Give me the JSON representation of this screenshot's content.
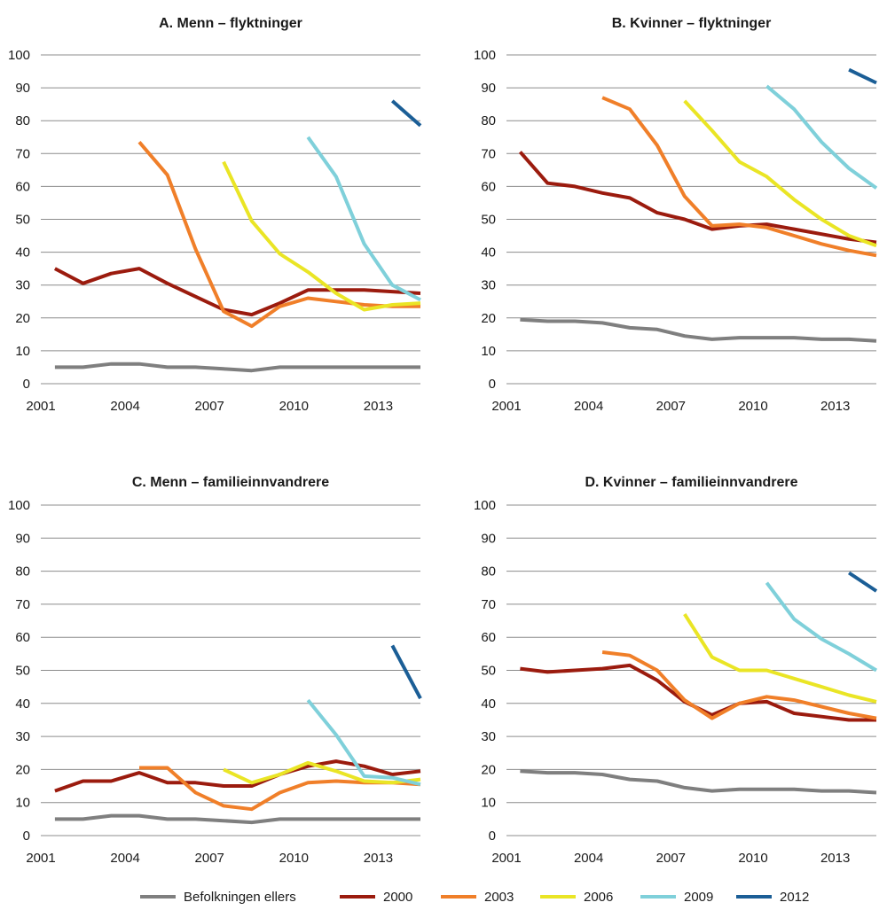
{
  "chart_data": [
    {
      "type": "line",
      "title": "A. Menn – flyktninger",
      "xlim": [
        2001,
        2014.5
      ],
      "ylim": [
        0,
        100
      ],
      "x_ticks": [
        "2001",
        "2004",
        "2007",
        "2010",
        "2013"
      ],
      "y_ticks": [
        "0",
        "10",
        "20",
        "30",
        "40",
        "50",
        "60",
        "70",
        "80",
        "90",
        "100"
      ],
      "grid": true,
      "series": [
        {
          "name": "Befolkningen ellers",
          "x": [
            2001.5,
            2002.5,
            2003.5,
            2004.5,
            2005.5,
            2006.5,
            2007.5,
            2008.5,
            2009.5,
            2010.5,
            2011.5,
            2012.5,
            2013.5,
            2014.5
          ],
          "y": [
            5,
            5,
            6,
            6,
            5,
            5,
            4.5,
            4,
            5,
            5,
            5,
            5,
            5,
            5
          ]
        },
        {
          "name": "2000",
          "x": [
            2001.5,
            2002.5,
            2003.5,
            2004.5,
            2005.5,
            2006.5,
            2007.5,
            2008.5,
            2009.5,
            2010.5,
            2011.5,
            2012.5,
            2013.5,
            2014.5
          ],
          "y": [
            35,
            30.5,
            33.5,
            35,
            30.5,
            26.5,
            22.5,
            21,
            24.5,
            28.5,
            28.5,
            28.5,
            28,
            27.5
          ]
        },
        {
          "name": "2003",
          "x": [
            2004.5,
            2005.5,
            2006.5,
            2007.5,
            2008.5,
            2009.5,
            2010.5,
            2011.5,
            2012.5,
            2013.5,
            2014.5
          ],
          "y": [
            73.5,
            63.5,
            41,
            22,
            17.5,
            23.5,
            26,
            25,
            24,
            23.5,
            23.5
          ]
        },
        {
          "name": "2006",
          "x": [
            2007.5,
            2008.5,
            2009.5,
            2010.5,
            2011.5,
            2012.5,
            2013.5,
            2014.5
          ],
          "y": [
            67.5,
            49.5,
            39.5,
            34,
            27.5,
            22.5,
            24,
            24.5
          ]
        },
        {
          "name": "2009",
          "x": [
            2010.5,
            2011.5,
            2012.5,
            2013.5,
            2014.5
          ],
          "y": [
            75,
            63,
            42.5,
            30,
            25.5
          ]
        },
        {
          "name": "2012",
          "x": [
            2013.5,
            2014.5
          ],
          "y": [
            86,
            78.5
          ]
        }
      ]
    },
    {
      "type": "line",
      "title": "B. Kvinner – flyktninger",
      "xlim": [
        2001,
        2014.5
      ],
      "ylim": [
        0,
        100
      ],
      "x_ticks": [
        "2001",
        "2004",
        "2007",
        "2010",
        "2013"
      ],
      "y_ticks": [
        "0",
        "10",
        "20",
        "30",
        "40",
        "50",
        "60",
        "70",
        "80",
        "90",
        "100"
      ],
      "grid": true,
      "series": [
        {
          "name": "Befolkningen ellers",
          "x": [
            2001.5,
            2002.5,
            2003.5,
            2004.5,
            2005.5,
            2006.5,
            2007.5,
            2008.5,
            2009.5,
            2010.5,
            2011.5,
            2012.5,
            2013.5,
            2014.5
          ],
          "y": [
            19.5,
            19,
            19,
            18.5,
            17,
            16.5,
            14.5,
            13.5,
            14,
            14,
            14,
            13.5,
            13.5,
            13
          ]
        },
        {
          "name": "2000",
          "x": [
            2001.5,
            2002.5,
            2003.5,
            2004.5,
            2005.5,
            2006.5,
            2007.5,
            2008.5,
            2009.5,
            2010.5,
            2011.5,
            2012.5,
            2013.5,
            2014.5
          ],
          "y": [
            70.5,
            61,
            60,
            58,
            56.5,
            52,
            50,
            47,
            48,
            48.5,
            47,
            45.5,
            44,
            43
          ]
        },
        {
          "name": "2003",
          "x": [
            2004.5,
            2005.5,
            2006.5,
            2007.5,
            2008.5,
            2009.5,
            2010.5,
            2011.5,
            2012.5,
            2013.5,
            2014.5
          ],
          "y": [
            87,
            83.5,
            72.5,
            57,
            48,
            48.5,
            47.5,
            45,
            42.5,
            40.5,
            39
          ]
        },
        {
          "name": "2006",
          "x": [
            2007.5,
            2008.5,
            2009.5,
            2010.5,
            2011.5,
            2012.5,
            2013.5,
            2014.5
          ],
          "y": [
            86,
            77,
            67.5,
            63,
            56,
            50,
            45,
            42
          ]
        },
        {
          "name": "2009",
          "x": [
            2010.5,
            2011.5,
            2012.5,
            2013.5,
            2014.5
          ],
          "y": [
            90.5,
            83.5,
            73.5,
            65.5,
            59.5
          ]
        },
        {
          "name": "2012",
          "x": [
            2013.5,
            2014.5
          ],
          "y": [
            95.5,
            91.5
          ]
        }
      ]
    },
    {
      "type": "line",
      "title": "C. Menn – familieinnvandrere",
      "xlim": [
        2001,
        2014.5
      ],
      "ylim": [
        0,
        100
      ],
      "x_ticks": [
        "2001",
        "2004",
        "2007",
        "2010",
        "2013"
      ],
      "y_ticks": [
        "0",
        "10",
        "20",
        "30",
        "40",
        "50",
        "60",
        "70",
        "80",
        "90",
        "100"
      ],
      "grid": true,
      "series": [
        {
          "name": "Befolkningen ellers",
          "x": [
            2001.5,
            2002.5,
            2003.5,
            2004.5,
            2005.5,
            2006.5,
            2007.5,
            2008.5,
            2009.5,
            2010.5,
            2011.5,
            2012.5,
            2013.5,
            2014.5
          ],
          "y": [
            5,
            5,
            6,
            6,
            5,
            5,
            4.5,
            4,
            5,
            5,
            5,
            5,
            5,
            5
          ]
        },
        {
          "name": "2000",
          "x": [
            2001.5,
            2002.5,
            2003.5,
            2004.5,
            2005.5,
            2006.5,
            2007.5,
            2008.5,
            2009.5,
            2010.5,
            2011.5,
            2012.5,
            2013.5,
            2014.5
          ],
          "y": [
            13.5,
            16.5,
            16.5,
            19,
            16,
            16,
            15,
            15,
            18.5,
            21,
            22.5,
            21,
            18.5,
            19.5
          ]
        },
        {
          "name": "2003",
          "x": [
            2004.5,
            2005.5,
            2006.5,
            2007.5,
            2008.5,
            2009.5,
            2010.5,
            2011.5,
            2012.5,
            2013.5,
            2014.5
          ],
          "y": [
            20.5,
            20.5,
            13,
            9,
            8,
            13,
            16,
            16.5,
            16,
            16,
            15.5
          ]
        },
        {
          "name": "2006",
          "x": [
            2007.5,
            2008.5,
            2009.5,
            2010.5,
            2011.5,
            2012.5,
            2013.5,
            2014.5
          ],
          "y": [
            20,
            16,
            18.5,
            22,
            19.5,
            16.5,
            16,
            17
          ]
        },
        {
          "name": "2009",
          "x": [
            2010.5,
            2011.5,
            2012.5,
            2013.5,
            2014.5
          ],
          "y": [
            41,
            30.5,
            18,
            17.5,
            15.5
          ]
        },
        {
          "name": "2012",
          "x": [
            2013.5,
            2014.5
          ],
          "y": [
            57.5,
            41.5
          ]
        }
      ]
    },
    {
      "type": "line",
      "title": "D. Kvinner – familieinnvandrere",
      "xlim": [
        2001,
        2014.5
      ],
      "ylim": [
        0,
        100
      ],
      "x_ticks": [
        "2001",
        "2004",
        "2007",
        "2010",
        "2013"
      ],
      "y_ticks": [
        "0",
        "10",
        "20",
        "30",
        "40",
        "50",
        "60",
        "70",
        "80",
        "90",
        "100"
      ],
      "grid": true,
      "series": [
        {
          "name": "Befolkningen ellers",
          "x": [
            2001.5,
            2002.5,
            2003.5,
            2004.5,
            2005.5,
            2006.5,
            2007.5,
            2008.5,
            2009.5,
            2010.5,
            2011.5,
            2012.5,
            2013.5,
            2014.5
          ],
          "y": [
            19.5,
            19,
            19,
            18.5,
            17,
            16.5,
            14.5,
            13.5,
            14,
            14,
            14,
            13.5,
            13.5,
            13
          ]
        },
        {
          "name": "2000",
          "x": [
            2001.5,
            2002.5,
            2003.5,
            2004.5,
            2005.5,
            2006.5,
            2007.5,
            2008.5,
            2009.5,
            2010.5,
            2011.5,
            2012.5,
            2013.5,
            2014.5
          ],
          "y": [
            50.5,
            49.5,
            50,
            50.5,
            51.5,
            47,
            40.5,
            36.5,
            40,
            40.5,
            37,
            36,
            35,
            35
          ]
        },
        {
          "name": "2003",
          "x": [
            2004.5,
            2005.5,
            2006.5,
            2007.5,
            2008.5,
            2009.5,
            2010.5,
            2011.5,
            2012.5,
            2013.5,
            2014.5
          ],
          "y": [
            55.5,
            54.5,
            50,
            41,
            35.5,
            40,
            42,
            41,
            39,
            37,
            35.5
          ]
        },
        {
          "name": "2006",
          "x": [
            2007.5,
            2008.5,
            2009.5,
            2010.5,
            2011.5,
            2012.5,
            2013.5,
            2014.5
          ],
          "y": [
            67,
            54,
            50,
            50,
            47.5,
            45,
            42.5,
            40.5
          ]
        },
        {
          "name": "2009",
          "x": [
            2010.5,
            2011.5,
            2012.5,
            2013.5,
            2014.5
          ],
          "y": [
            76.5,
            65.5,
            59.5,
            55,
            50
          ]
        },
        {
          "name": "2012",
          "x": [
            2013.5,
            2014.5
          ],
          "y": [
            79.5,
            74
          ]
        }
      ]
    }
  ],
  "legend": {
    "placement": "bottom",
    "items": [
      {
        "label": "Befolkningen ellers",
        "color": "#7f7f7f"
      },
      {
        "label": "2000",
        "color": "#9b1b0e"
      },
      {
        "label": "2003",
        "color": "#f07f29"
      },
      {
        "label": "2006",
        "color": "#eae525"
      },
      {
        "label": "2009",
        "color": "#7fd0da"
      },
      {
        "label": "2012",
        "color": "#1b5e96"
      }
    ]
  },
  "colors": {
    "Befolkningen ellers": "#7f7f7f",
    "2000": "#9b1b0e",
    "2003": "#f07f29",
    "2006": "#eae525",
    "2009": "#7fd0da",
    "2012": "#1b5e96",
    "grid": "#8c8c8c"
  }
}
